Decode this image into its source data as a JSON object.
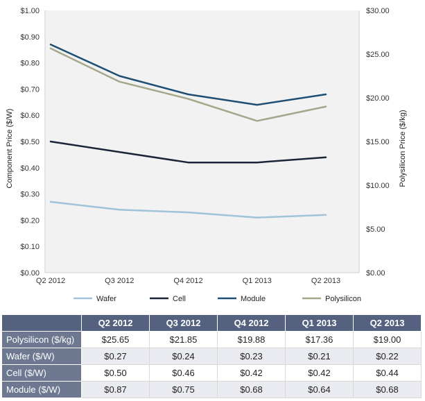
{
  "chart_data": {
    "type": "line",
    "categories": [
      "Q2 2012",
      "Q3 2012",
      "Q4 2012",
      "Q1 2013",
      "Q2 2013"
    ],
    "ylabel_left": "Component Price ($/W)",
    "ylabel_right": "Polysilicon Price ($/kg)",
    "ylim_left": [
      0,
      1.0
    ],
    "ylim_right": [
      0,
      30
    ],
    "yticks_left": [
      "$0.00",
      "$0.10",
      "$0.20",
      "$0.30",
      "$0.40",
      "$0.50",
      "$0.60",
      "$0.70",
      "$0.80",
      "$0.90",
      "$1.00"
    ],
    "yticks_right": [
      "$0.00",
      "$5.00",
      "$10.00",
      "$15.00",
      "$20.00",
      "$25.00",
      "$30.00"
    ],
    "grid": false,
    "legend_position": "bottom",
    "series": [
      {
        "name": "Wafer",
        "axis": "left",
        "color": "#9fc3da",
        "values": [
          0.27,
          0.24,
          0.23,
          0.21,
          0.22
        ]
      },
      {
        "name": "Cell",
        "axis": "left",
        "color": "#1a2538",
        "values": [
          0.5,
          0.46,
          0.42,
          0.42,
          0.44
        ]
      },
      {
        "name": "Module",
        "axis": "left",
        "color": "#1e4e74",
        "values": [
          0.87,
          0.75,
          0.68,
          0.64,
          0.68
        ]
      },
      {
        "name": "Polysilicon",
        "axis": "right",
        "color": "#a4a88a",
        "values": [
          25.65,
          21.85,
          19.88,
          17.36,
          19.0
        ]
      }
    ]
  },
  "table": {
    "columns": [
      "Q2 2012",
      "Q3 2012",
      "Q4 2012",
      "Q1 2013",
      "Q2 2013"
    ],
    "rows": [
      {
        "label": "Polysilicon ($/kg)",
        "cells": [
          "$25.65",
          "$21.85",
          "$19.88",
          "$17.36",
          "$19.00"
        ]
      },
      {
        "label": "Wafer ($/W)",
        "cells": [
          "$0.27",
          "$0.24",
          "$0.23",
          "$0.21",
          "$0.22"
        ]
      },
      {
        "label": "Cell ($/W)",
        "cells": [
          "$0.50",
          "$0.46",
          "$0.42",
          "$0.42",
          "$0.44"
        ]
      },
      {
        "label": "Module ($/W)",
        "cells": [
          "$0.87",
          "$0.75",
          "$0.68",
          "$0.64",
          "$0.68"
        ]
      }
    ]
  }
}
